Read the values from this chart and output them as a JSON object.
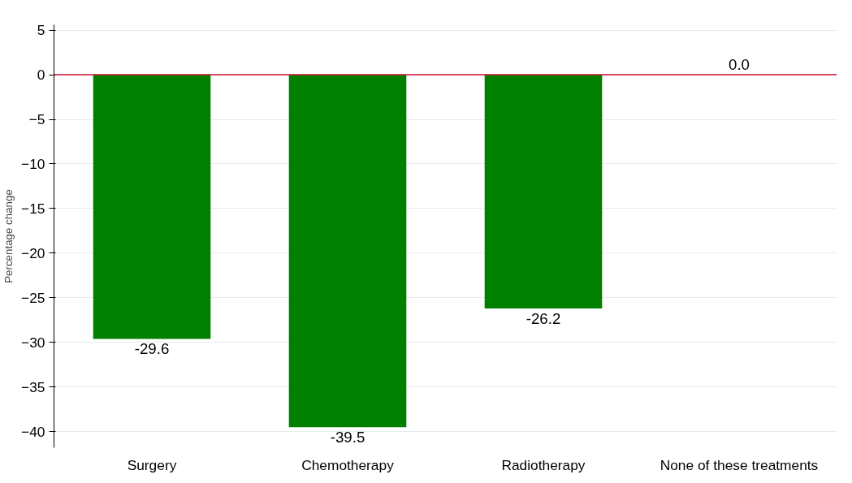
{
  "chart_data": {
    "type": "bar",
    "ylabel": "Percentage change",
    "categories": [
      "Surgery",
      "Chemotherapy",
      "Radiotherapy",
      "None of these treatments"
    ],
    "values": [
      -29.6,
      -39.5,
      -26.2,
      0.0
    ],
    "value_labels": [
      "-29.6",
      "-39.5",
      "-26.2",
      "0.0"
    ],
    "color": "#007f00",
    "ylim": [
      -41.8,
      5.6
    ],
    "yticks": [
      5,
      0,
      -5,
      -10,
      -15,
      -20,
      -25,
      -30,
      -35,
      -40
    ],
    "grid": "y",
    "ref_lines": [
      {
        "axis": "y",
        "value": 0,
        "color": "#c8102e"
      }
    ]
  }
}
